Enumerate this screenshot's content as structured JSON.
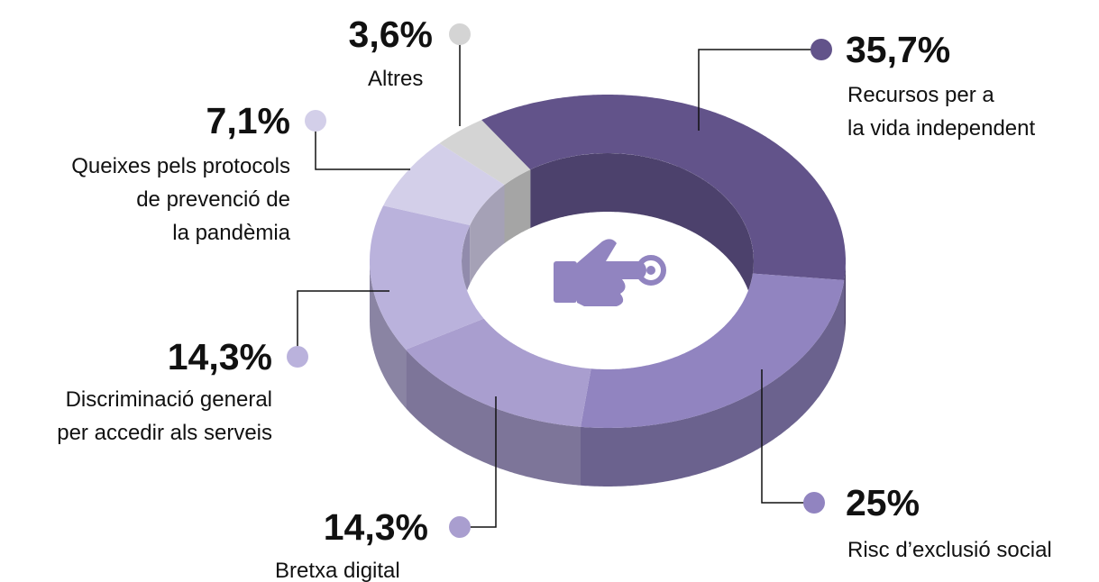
{
  "chart_data": {
    "type": "pie",
    "categories": [
      "Recursos per a\nla vida independent",
      "Risc d’exclusió social",
      "Bretxa digital",
      "Discriminació general\nper accedir als serveis",
      "Queixes pels protocols\nde prevenció de\nla pandèmia",
      "Altres"
    ],
    "values": [
      35.7,
      25,
      14.3,
      14.3,
      7.1,
      3.6
    ],
    "value_labels": [
      "35,7%",
      "25%",
      "14,3%",
      "14,3%",
      "7,1%",
      "3,6%"
    ],
    "colors": [
      "#62538a",
      "#9184c0",
      "#a99ecf",
      "#bab2dc",
      "#d3cfe9",
      "#d4d4d4"
    ]
  }
}
